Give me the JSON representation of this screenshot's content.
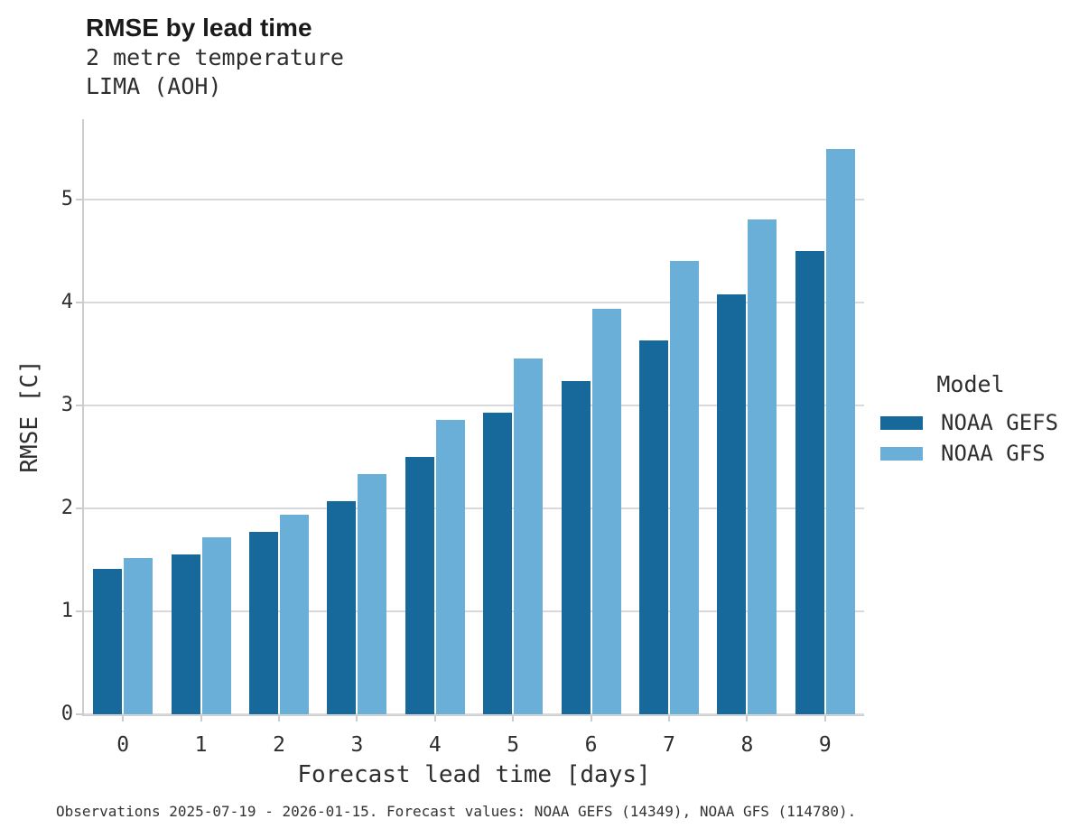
{
  "header": {
    "title": "RMSE by lead time",
    "subtitle_line1": "2 metre temperature",
    "subtitle_line2": "LIMA (AOH)"
  },
  "chart_data": {
    "type": "bar",
    "title": "RMSE by lead time",
    "subtitle": [
      "2 metre temperature",
      "LIMA (AOH)"
    ],
    "xlabel": "Forecast lead time [days]",
    "ylabel": "RMSE [C]",
    "categories": [
      "0",
      "1",
      "2",
      "3",
      "4",
      "5",
      "6",
      "7",
      "8",
      "9"
    ],
    "series": [
      {
        "name": "NOAA GEFS",
        "color": "#17699c",
        "values": [
          1.41,
          1.55,
          1.77,
          2.07,
          2.5,
          2.93,
          3.24,
          3.63,
          4.08,
          4.5
        ]
      },
      {
        "name": "NOAA GFS",
        "color": "#69afd7",
        "values": [
          1.52,
          1.72,
          1.94,
          2.33,
          2.86,
          3.46,
          3.94,
          4.4,
          4.81,
          5.49
        ]
      }
    ],
    "yticks": [
      0,
      1,
      2,
      3,
      4,
      5
    ],
    "ylim": [
      0,
      5.78
    ],
    "grid": "horizontal",
    "legend_position": "right",
    "legend_title": "Model"
  },
  "legend": {
    "title": "Model",
    "items": [
      {
        "label": "NOAA GEFS",
        "color": "#17699c"
      },
      {
        "label": "NOAA GFS",
        "color": "#69afd7"
      }
    ]
  },
  "caption": "Observations 2025-07-19 - 2026-01-15. Forecast values: NOAA GEFS (14349), NOAA GFS (114780)."
}
